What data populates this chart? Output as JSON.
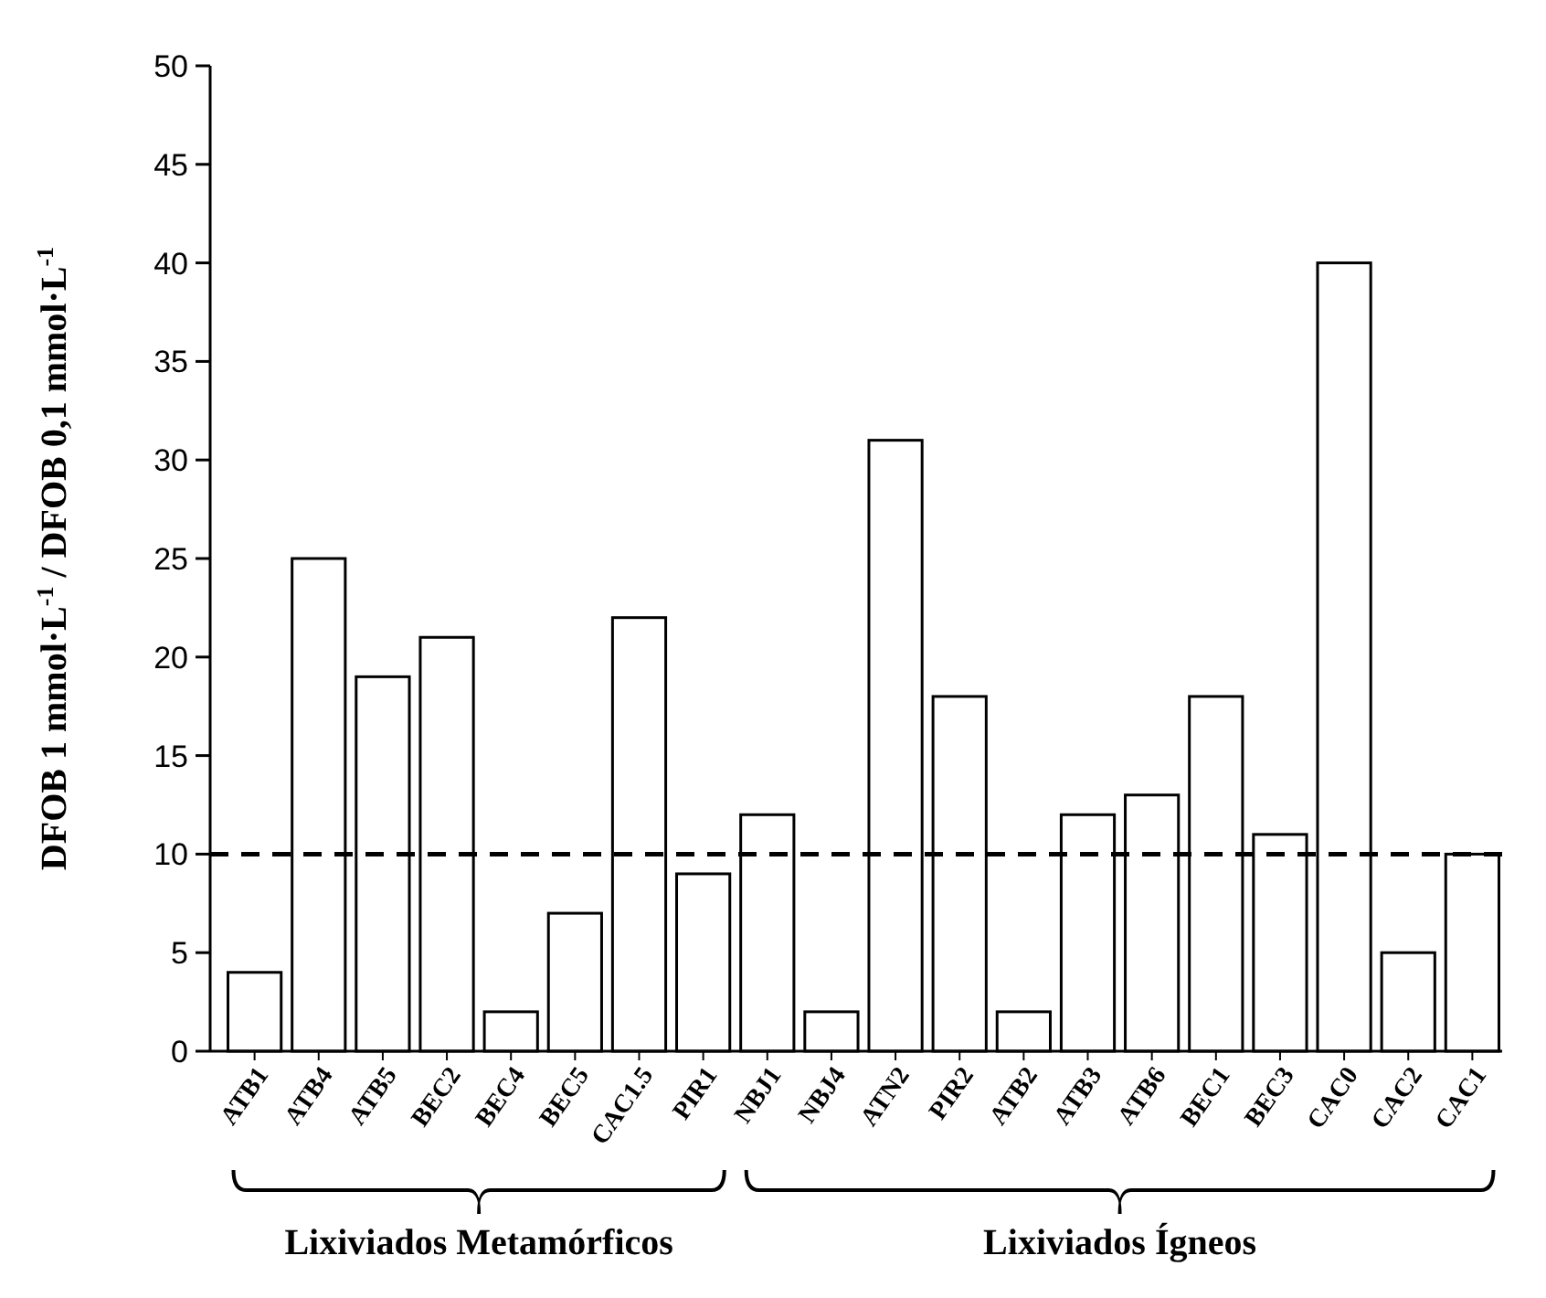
{
  "chart_data": {
    "type": "bar",
    "ylabel": "DFOB 1 mmol·L$^{-1}$ / DFOB 0,1 mmol·L$^{-1}$",
    "categories": [
      "ATB1",
      "ATB4",
      "ATB5",
      "BEC2",
      "BEC4",
      "BEC5",
      "CAC1.5",
      "PIR1",
      "NBJ1",
      "NBJ4",
      "ATN2",
      "PIR2",
      "ATB2",
      "ATB3",
      "ATB6",
      "BEC1",
      "BEC3",
      "CAC0",
      "CAC2",
      "CAC1"
    ],
    "values": [
      4,
      25,
      19,
      21,
      2,
      7,
      22,
      9,
      12,
      2,
      31,
      18,
      2,
      12,
      13,
      18,
      11,
      40,
      5,
      10
    ],
    "color": "#ffffff",
    "ylim": [
      0,
      50
    ],
    "yticks": [
      0,
      5,
      10,
      15,
      20,
      25,
      30,
      35,
      40,
      45,
      50
    ],
    "ref_lines": [
      {
        "axis": "y",
        "value": 10,
        "color": "#000000",
        "line_style": "dashed"
      }
    ],
    "annotations": [
      "Lixiviados Metamórficos",
      "Lixiviados Ígneos"
    ],
    "grid": false
  }
}
